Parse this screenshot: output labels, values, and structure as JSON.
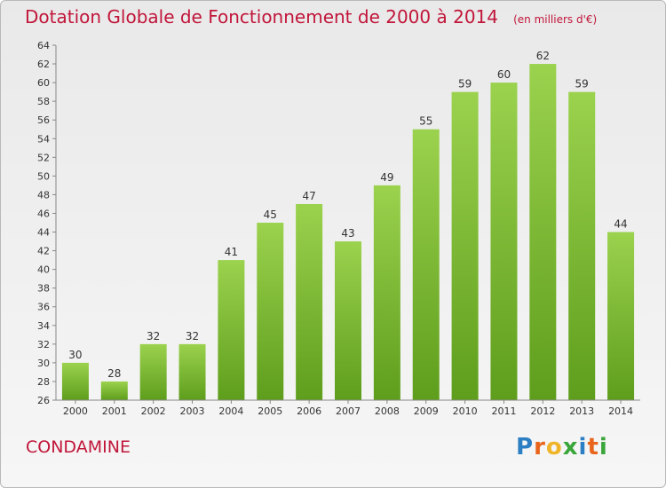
{
  "header": {
    "title": "Dotation Globale de Fonctionnement de 2000 à 2014",
    "unit": "(en milliers d'€)"
  },
  "footer": {
    "commune": "CONDAMINE",
    "logo": {
      "text": "Proxiti",
      "letter_colors": [
        "#2c7fc3",
        "#e8651b",
        "#f0b428",
        "#3aa63a",
        "#2c7fc3",
        "#e8651b",
        "#3aa63a"
      ]
    }
  },
  "colors": {
    "title": "#c1163a",
    "bar_top": "#9bd24e",
    "bar_bottom": "#5e9e1c",
    "axis": "#888888",
    "text": "#333333"
  },
  "chart_data": {
    "type": "bar",
    "title": "Dotation Globale de Fonctionnement de 2000 à 2014",
    "subtitle": "(en milliers d'€)",
    "xlabel": "",
    "ylabel": "",
    "categories": [
      "2000",
      "2001",
      "2002",
      "2003",
      "2004",
      "2005",
      "2006",
      "2007",
      "2008",
      "2009",
      "2010",
      "2011",
      "2012",
      "2013",
      "2014"
    ],
    "values": [
      30,
      28,
      32,
      32,
      41,
      45,
      47,
      43,
      49,
      55,
      59,
      60,
      62,
      59,
      44
    ],
    "ylim": [
      26,
      64
    ],
    "yticks": [
      26,
      28,
      30,
      32,
      34,
      36,
      38,
      40,
      42,
      44,
      46,
      48,
      50,
      52,
      54,
      56,
      58,
      60,
      62,
      64
    ],
    "data_labels": true,
    "grid": false,
    "legend": "none"
  }
}
